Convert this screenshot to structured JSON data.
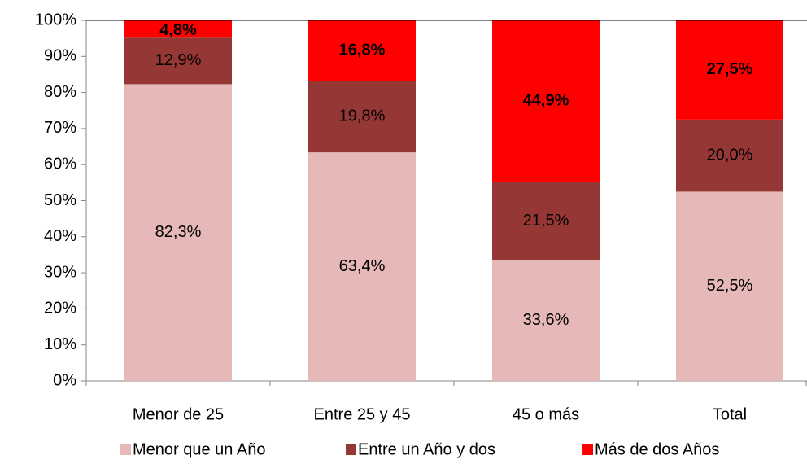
{
  "chart_data": {
    "type": "stacked_bar",
    "categories": [
      "Menor de 25",
      "Entre 25 y 45",
      "45 o más",
      "Total"
    ],
    "series": [
      {
        "name": "Menor que un Año",
        "color": "#e6b8b7",
        "values": [
          82.3,
          63.4,
          33.6,
          52.5
        ],
        "value_labels": [
          "82,3%",
          "63,4%",
          "33,6%",
          "52,5%"
        ]
      },
      {
        "name": "Entre un Año y dos",
        "color": "#953735",
        "values": [
          12.9,
          19.8,
          21.5,
          20.0
        ],
        "value_labels": [
          "12,9%",
          "19,8%",
          "21,5%",
          "20,0%"
        ]
      },
      {
        "name": "Más de dos Años",
        "color": "#ff0000",
        "values": [
          4.8,
          16.8,
          44.9,
          27.5
        ],
        "value_labels": [
          "4,8%",
          "16,8%",
          "44,9%",
          "27,5%"
        ]
      }
    ],
    "ylim": [
      0,
      100
    ],
    "yticks": [
      {
        "value": 0,
        "label": "0%"
      },
      {
        "value": 10,
        "label": "10%"
      },
      {
        "value": 20,
        "label": "20%"
      },
      {
        "value": 30,
        "label": "30%"
      },
      {
        "value": 40,
        "label": "40%"
      },
      {
        "value": 50,
        "label": "50%"
      },
      {
        "value": 60,
        "label": "60%"
      },
      {
        "value": 70,
        "label": "70%"
      },
      {
        "value": 80,
        "label": "80%"
      },
      {
        "value": 90,
        "label": "90%"
      },
      {
        "value": 100,
        "label": "100%"
      }
    ],
    "legend": "bottom"
  }
}
